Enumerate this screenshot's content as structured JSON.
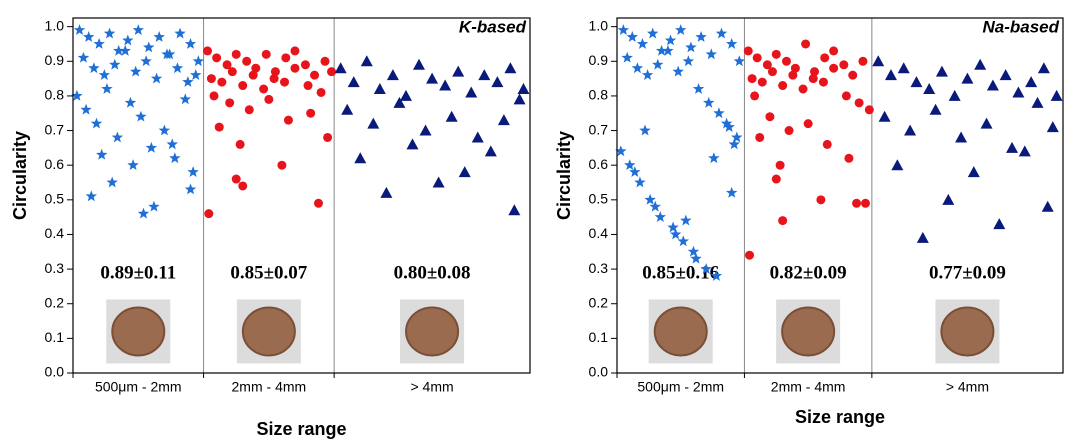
{
  "chart_data": [
    {
      "type": "scatter",
      "title": "K-based",
      "xlabel": "Size range",
      "ylabel": "Circularity",
      "categories": [
        "500μm - 2mm",
        "2mm - 4mm",
        "> 4mm"
      ],
      "annotations": [
        "0.89±0.11",
        "0.85±0.07",
        "0.80±0.08"
      ],
      "xlim": [
        0,
        3.5
      ],
      "ylim": [
        0,
        1.025
      ],
      "yticks": [
        {
          "value": 0,
          "label": "0.0"
        },
        0.1,
        0.2,
        0.3,
        0.4,
        0.5,
        0.6,
        0.7,
        0.8,
        0.9,
        {
          "value": 1,
          "label": "1.0"
        }
      ],
      "series": [
        {
          "color": "#1f6fd6",
          "marker": "star",
          "x": [
            0.05,
            0.12,
            0.2,
            0.28,
            0.35,
            0.42,
            0.5,
            0.58,
            0.66,
            0.74,
            0.82,
            0.9,
            0.96,
            0.08,
            0.16,
            0.24,
            0.32,
            0.4,
            0.48,
            0.56,
            0.64,
            0.72,
            0.8,
            0.88,
            0.94,
            0.03,
            0.1,
            0.18,
            0.26,
            0.34,
            0.44,
            0.52,
            0.6,
            0.7,
            0.78,
            0.86,
            0.92,
            0.14,
            0.3,
            0.46,
            0.62,
            0.76,
            0.9,
            0.22,
            0.54
          ],
          "values": [
            0.99,
            0.97,
            0.95,
            0.98,
            0.93,
            0.96,
            0.99,
            0.94,
            0.97,
            0.92,
            0.98,
            0.95,
            0.9,
            0.91,
            0.88,
            0.86,
            0.89,
            0.93,
            0.87,
            0.9,
            0.85,
            0.92,
            0.88,
            0.84,
            0.86,
            0.8,
            0.76,
            0.72,
            0.82,
            0.68,
            0.78,
            0.74,
            0.65,
            0.7,
            0.62,
            0.79,
            0.58,
            0.51,
            0.55,
            0.6,
            0.48,
            0.66,
            0.53,
            0.63,
            0.46
          ]
        },
        {
          "color": "#e8141b",
          "marker": "circle",
          "x": [
            1.03,
            1.1,
            1.18,
            1.25,
            1.33,
            1.4,
            1.48,
            1.55,
            1.63,
            1.7,
            1.78,
            1.85,
            1.93,
            1.06,
            1.14,
            1.22,
            1.3,
            1.38,
            1.46,
            1.54,
            1.62,
            1.7,
            1.8,
            1.9,
            1.98,
            1.08,
            1.2,
            1.35,
            1.5,
            1.65,
            1.82,
            1.95,
            1.12,
            1.28,
            1.6,
            1.88,
            1.04,
            1.25,
            1.3
          ],
          "values": [
            0.93,
            0.91,
            0.89,
            0.92,
            0.9,
            0.88,
            0.92,
            0.87,
            0.91,
            0.93,
            0.89,
            0.86,
            0.9,
            0.85,
            0.84,
            0.87,
            0.83,
            0.86,
            0.82,
            0.85,
            0.84,
            0.88,
            0.83,
            0.81,
            0.87,
            0.8,
            0.78,
            0.76,
            0.79,
            0.73,
            0.75,
            0.68,
            0.71,
            0.66,
            0.6,
            0.49,
            0.46,
            0.56,
            0.54
          ]
        },
        {
          "color": "#0a1a7a",
          "marker": "triangle",
          "x": [
            2.05,
            2.15,
            2.25,
            2.35,
            2.45,
            2.55,
            2.65,
            2.75,
            2.85,
            2.95,
            3.05,
            3.15,
            3.25,
            3.35,
            3.45,
            2.1,
            2.3,
            2.5,
            2.7,
            2.9,
            3.1,
            3.3,
            3.42,
            2.2,
            2.6,
            3.0,
            3.38,
            2.4,
            2.8,
            3.2
          ],
          "values": [
            0.88,
            0.84,
            0.9,
            0.82,
            0.86,
            0.8,
            0.89,
            0.85,
            0.83,
            0.87,
            0.81,
            0.86,
            0.84,
            0.88,
            0.82,
            0.76,
            0.72,
            0.78,
            0.7,
            0.74,
            0.68,
            0.73,
            0.79,
            0.62,
            0.66,
            0.58,
            0.47,
            0.52,
            0.55,
            0.64
          ]
        }
      ]
    },
    {
      "type": "scatter",
      "title": "Na-based",
      "xlabel": "Size range",
      "ylabel": "Circularity",
      "categories": [
        "500μm - 2mm",
        "2mm - 4mm",
        "> 4mm"
      ],
      "annotations": [
        "0.85±0.16",
        "0.82±0.09",
        "0.77±0.09"
      ],
      "xlim": [
        0,
        3.5
      ],
      "ylim": [
        0,
        1.025
      ],
      "yticks": [
        {
          "value": 0,
          "label": "0.0"
        },
        0.1,
        0.2,
        0.3,
        0.4,
        0.5,
        0.6,
        0.7,
        0.8,
        0.9,
        {
          "value": 1,
          "label": "1.0"
        }
      ],
      "series": [
        {
          "color": "#1f6fd6",
          "marker": "star",
          "x": [
            0.05,
            0.12,
            0.2,
            0.28,
            0.35,
            0.42,
            0.5,
            0.58,
            0.66,
            0.74,
            0.82,
            0.9,
            0.96,
            0.08,
            0.16,
            0.24,
            0.32,
            0.4,
            0.48,
            0.56,
            0.64,
            0.72,
            0.8,
            0.88,
            0.94,
            0.03,
            0.1,
            0.18,
            0.26,
            0.34,
            0.44,
            0.52,
            0.6,
            0.7,
            0.78,
            0.86,
            0.92,
            0.14,
            0.3,
            0.46,
            0.62,
            0.76,
            0.9,
            0.22,
            0.54
          ],
          "values": [
            0.99,
            0.97,
            0.95,
            0.98,
            0.93,
            0.96,
            0.99,
            0.94,
            0.97,
            0.92,
            0.98,
            0.95,
            0.9,
            0.91,
            0.88,
            0.86,
            0.89,
            0.93,
            0.87,
            0.9,
            0.82,
            0.78,
            0.75,
            0.71,
            0.68,
            0.64,
            0.6,
            0.55,
            0.5,
            0.45,
            0.42,
            0.38,
            0.35,
            0.3,
            0.28,
            0.72,
            0.66,
            0.58,
            0.48,
            0.4,
            0.33,
            0.62,
            0.52,
            0.7,
            0.44
          ]
        },
        {
          "color": "#e8141b",
          "marker": "circle",
          "x": [
            1.03,
            1.1,
            1.18,
            1.25,
            1.33,
            1.4,
            1.48,
            1.55,
            1.63,
            1.7,
            1.78,
            1.85,
            1.93,
            1.06,
            1.14,
            1.22,
            1.3,
            1.38,
            1.46,
            1.54,
            1.62,
            1.7,
            1.8,
            1.9,
            1.98,
            1.08,
            1.2,
            1.35,
            1.5,
            1.65,
            1.82,
            1.95,
            1.12,
            1.28,
            1.6,
            1.88,
            1.04,
            1.25,
            1.3
          ],
          "values": [
            0.93,
            0.91,
            0.89,
            0.92,
            0.9,
            0.88,
            0.95,
            0.87,
            0.91,
            0.93,
            0.89,
            0.86,
            0.9,
            0.85,
            0.84,
            0.87,
            0.83,
            0.86,
            0.82,
            0.85,
            0.84,
            0.88,
            0.8,
            0.78,
            0.76,
            0.8,
            0.74,
            0.7,
            0.72,
            0.66,
            0.62,
            0.49,
            0.68,
            0.6,
            0.5,
            0.49,
            0.34,
            0.56,
            0.44
          ]
        },
        {
          "color": "#0a1a7a",
          "marker": "triangle",
          "x": [
            2.05,
            2.15,
            2.25,
            2.35,
            2.45,
            2.55,
            2.65,
            2.75,
            2.85,
            2.95,
            3.05,
            3.15,
            3.25,
            3.35,
            3.45,
            2.1,
            2.3,
            2.5,
            2.7,
            2.9,
            3.1,
            3.3,
            3.42,
            2.2,
            2.6,
            3.0,
            3.38,
            2.4,
            2.8,
            3.2
          ],
          "values": [
            0.9,
            0.86,
            0.88,
            0.84,
            0.82,
            0.87,
            0.8,
            0.85,
            0.89,
            0.83,
            0.86,
            0.81,
            0.84,
            0.88,
            0.8,
            0.74,
            0.7,
            0.76,
            0.68,
            0.72,
            0.65,
            0.78,
            0.71,
            0.6,
            0.5,
            0.43,
            0.48,
            0.39,
            0.58,
            0.64
          ]
        }
      ]
    }
  ]
}
